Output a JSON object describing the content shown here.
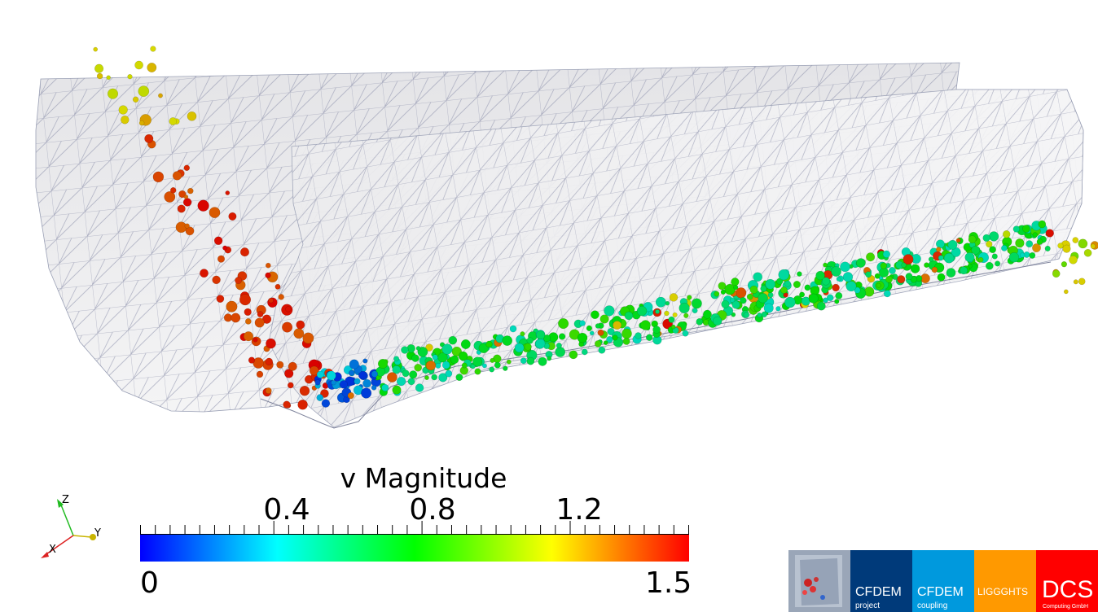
{
  "colorbar": {
    "title": "v Magnitude",
    "tick_labels": [
      "0.4",
      "0.8",
      "1.2"
    ],
    "tick_values": [
      0.4,
      0.8,
      1.2
    ],
    "range": [
      0,
      1.5
    ],
    "min_label": "0",
    "max_label": "1.5",
    "colors": [
      "#0000ff",
      "#00ffff",
      "#00ff00",
      "#ffff00",
      "#ff0000"
    ]
  },
  "axes_triad": {
    "x": "X",
    "y": "Y",
    "z": "Z"
  },
  "logos": {
    "cfdem_project": {
      "main": "CFDEM",
      "sub": "project",
      "color": "#003a7a"
    },
    "cfdem_coupling": {
      "main": "CFDEM",
      "sub": "coupling",
      "color": "#0099dd"
    },
    "liggghts": {
      "main": "LIGGGHTS",
      "color": "#ff9900"
    },
    "dcs": {
      "main": "DCS",
      "sub": "Computing GmbH",
      "color": "#ff0000"
    }
  }
}
